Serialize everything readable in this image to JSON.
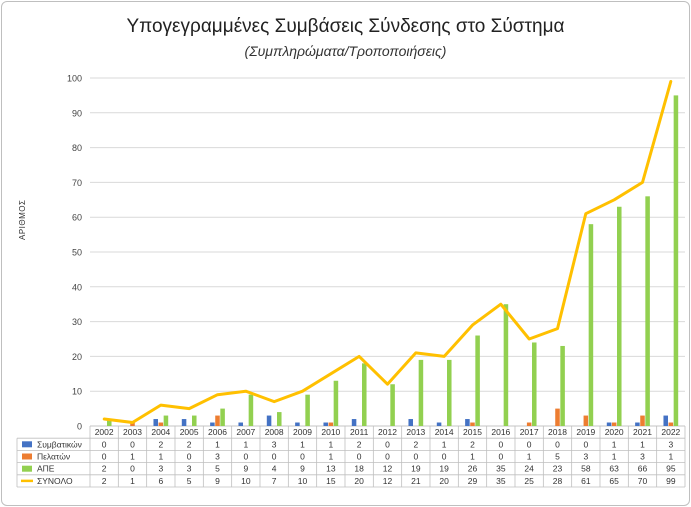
{
  "chart_data": {
    "type": "bar+line",
    "title": "Υπογεγραμμένες Συμβάσεις Σύνδεσης στο Σύστημα",
    "subtitle": "(Συμπληρώματα/Τροποποιήσεις)",
    "xlabel": "",
    "ylabel": "ΑΡΙΘΜΟΣ",
    "ylim": [
      0,
      100
    ],
    "yticks": [
      0,
      10,
      20,
      30,
      40,
      50,
      60,
      70,
      80,
      90,
      100
    ],
    "grid": true,
    "legend": "data-table",
    "categories": [
      "2002",
      "2003",
      "2004",
      "2005",
      "2006",
      "2007",
      "2008",
      "2009",
      "2010",
      "2011",
      "2012",
      "2013",
      "2014",
      "2015",
      "2016",
      "2017",
      "2018",
      "2019",
      "2020",
      "2021",
      "2022"
    ],
    "series": [
      {
        "name": "Συμβατικών",
        "type": "bar",
        "color": "#4472c4",
        "values": [
          0,
          0,
          2,
          2,
          1,
          1,
          3,
          1,
          1,
          2,
          0,
          2,
          1,
          2,
          0,
          0,
          0,
          0,
          1,
          1,
          3
        ]
      },
      {
        "name": "Πελατών",
        "type": "bar",
        "color": "#ed7d31",
        "values": [
          0,
          1,
          1,
          0,
          3,
          0,
          0,
          0,
          1,
          0,
          0,
          0,
          0,
          1,
          0,
          1,
          5,
          3,
          1,
          3,
          1
        ]
      },
      {
        "name": "ΑΠΕ",
        "type": "bar",
        "color": "#92d050",
        "values": [
          2,
          0,
          3,
          3,
          5,
          9,
          4,
          9,
          13,
          18,
          12,
          19,
          19,
          26,
          35,
          24,
          23,
          58,
          63,
          66,
          95
        ]
      },
      {
        "name": "ΣΥΝΟΛΟ",
        "type": "line",
        "color": "#ffc000",
        "values": [
          2,
          1,
          6,
          5,
          9,
          10,
          7,
          10,
          15,
          20,
          12,
          21,
          20,
          29,
          35,
          25,
          28,
          61,
          65,
          70,
          99
        ]
      }
    ]
  }
}
